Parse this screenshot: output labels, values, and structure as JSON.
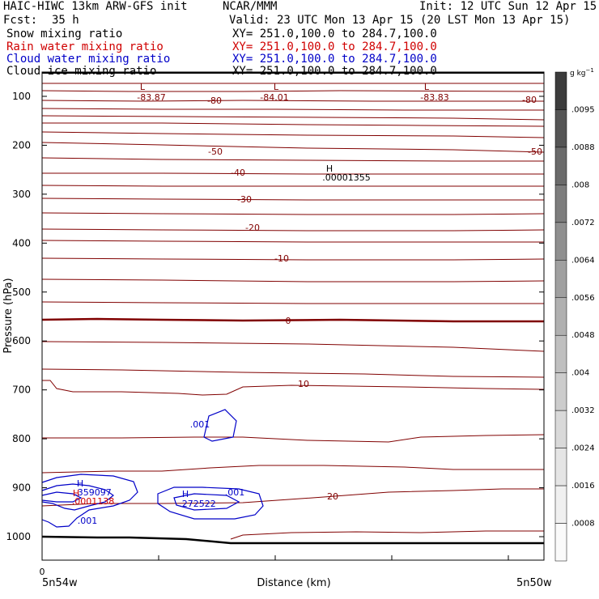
{
  "header": {
    "model": "HAIC-HIWC 13km ARW-GFS init",
    "org": "NCAR/MMM",
    "init": "Init: 12 UTC Sun 12 Apr 15",
    "fcst_label": "Fcst:",
    "fcst_value": "35 h",
    "valid": "Valid: 23 UTC Mon 13 Apr 15 (20 LST Mon 13 Apr 15)",
    "fields": [
      {
        "name": "Snow mixing ratio",
        "xy": "XY= 251.0,100.0 to 284.7,100.0",
        "color": "#000000"
      },
      {
        "name": "Rain water mixing ratio",
        "xy": "XY= 251.0,100.0 to 284.7,100.0",
        "color": "#d00000"
      },
      {
        "name": "Cloud water mixing ratio",
        "xy": "XY= 251.0,100.0 to 284.7,100.0",
        "color": "#0000c8"
      },
      {
        "name": "Cloud ice mixing ratio",
        "xy": "XY= 251.0,100.0 to 284.7,100.0",
        "color": "#000000"
      }
    ]
  },
  "chart_data": {
    "type": "contour-cross-section",
    "xlabel": "Distance (km)",
    "ylabel": "Pressure (hPa)",
    "x_start_tick": "0",
    "x_left_label": "5n54w",
    "x_right_label": "5n50w",
    "y_ticks": [
      100,
      200,
      300,
      400,
      500,
      600,
      700,
      800,
      900,
      1000
    ],
    "ylim": [
      50,
      1050
    ],
    "contour_color": "#800000",
    "cloud_color": "#0000c8",
    "rain_color": "#d00000",
    "temperature_contour_labels": [
      "-83.87",
      "-80",
      "-84.01",
      "-83.83",
      "-80",
      "-50",
      "-50",
      "-40",
      "-30",
      "-20",
      "-10",
      "0",
      "10",
      "20"
    ],
    "extrema_labels": [
      {
        "symbol": "L",
        "value": "-83.87"
      },
      {
        "symbol": "L",
        "value": "-84.01"
      },
      {
        "symbol": "L",
        "value": "-83.83"
      },
      {
        "symbol": "H",
        "value": ".00001355"
      },
      {
        "symbol": "H",
        "value": ".359097"
      },
      {
        "symbol": "H",
        "value": ".0001138"
      },
      {
        "symbol": "H",
        "value": ".272522"
      }
    ],
    "cloud_water_labels": [
      ".001",
      ".001",
      ".001"
    ],
    "colorbar": {
      "units": "g kg",
      "units_exp": "−1",
      "labels": [
        ".0095",
        ".0088",
        ".008",
        ".0072",
        ".0064",
        ".0056",
        ".0048",
        ".004",
        ".0032",
        ".0024",
        ".0016",
        ".0008"
      ],
      "colors": [
        "#3c3c3c",
        "#555555",
        "#6a6a6a",
        "#7d7d7d",
        "#8f8f8f",
        "#a0a0a0",
        "#b0b0b0",
        "#bfbfbf",
        "#cccccc",
        "#d9d9d9",
        "#e5e5e5",
        "#f0f0f0",
        "#fafafa"
      ]
    }
  }
}
